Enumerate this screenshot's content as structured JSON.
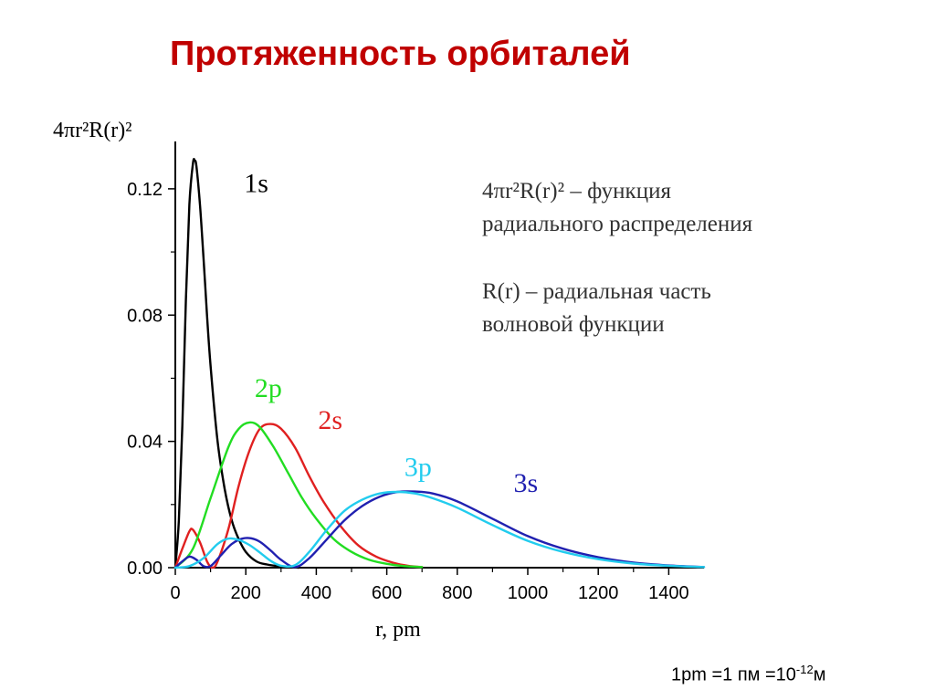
{
  "slide": {
    "title": "Протяженность орбиталей"
  },
  "annotations": {
    "line1a": "4πr²R(r)² – функция",
    "line1b": "радиального распределения",
    "line2a": "R(r) – радиальная часть",
    "line2b": "волновой функции"
  },
  "footnote": {
    "prefix": "1pm =1 пм =10",
    "exponent": "-12",
    "suffix": "м"
  },
  "chart_data": {
    "type": "line",
    "ylabel": "4πr²R(r)²",
    "xlabel": "r, pm",
    "xlim": [
      0,
      1500
    ],
    "ylim": [
      0,
      0.135
    ],
    "xticks": [
      0,
      200,
      400,
      600,
      800,
      1000,
      1200,
      1400
    ],
    "xtick_labels": [
      "0",
      "200",
      "400",
      "600",
      "800",
      "1000",
      "1200",
      "1400"
    ],
    "yticks": [
      0,
      0.04,
      0.08,
      0.12
    ],
    "ytick_labels": [
      "0.00",
      "0.04",
      "0.08",
      "0.12"
    ],
    "grid": false,
    "series": [
      {
        "name": "1s",
        "color": "#000000",
        "x": [
          0,
          10,
          20,
          30,
          40,
          50,
          55,
          60,
          70,
          80,
          90,
          100,
          120,
          140,
          160,
          180,
          200,
          230,
          260,
          300,
          350
        ],
        "y": [
          0,
          0.015,
          0.045,
          0.085,
          0.115,
          0.128,
          0.129,
          0.127,
          0.115,
          0.098,
          0.08,
          0.064,
          0.04,
          0.025,
          0.015,
          0.009,
          0.005,
          0.002,
          0.001,
          0.0004,
          0
        ]
      },
      {
        "name": "2s",
        "color": "#e02020",
        "x": [
          0,
          20,
          40,
          50,
          70,
          90,
          105,
          120,
          150,
          180,
          210,
          240,
          270,
          300,
          340,
          380,
          420,
          470,
          520,
          570,
          620,
          660,
          700
        ],
        "y": [
          0,
          0.006,
          0.0115,
          0.012,
          0.008,
          0.002,
          0,
          0.002,
          0.012,
          0.026,
          0.037,
          0.044,
          0.0455,
          0.044,
          0.038,
          0.029,
          0.021,
          0.013,
          0.007,
          0.0035,
          0.0015,
          0.0006,
          0.0002
        ]
      },
      {
        "name": "2p",
        "color": "#22dd22",
        "x": [
          0,
          50,
          100,
          150,
          180,
          210,
          240,
          280,
          320,
          360,
          400,
          450,
          500,
          550,
          600,
          650,
          700
        ],
        "y": [
          0,
          0.006,
          0.022,
          0.038,
          0.044,
          0.046,
          0.0445,
          0.038,
          0.03,
          0.022,
          0.0155,
          0.009,
          0.005,
          0.0025,
          0.0012,
          0.0005,
          0.0002
        ]
      },
      {
        "name": "3s",
        "color": "#2020b0",
        "x": [
          0,
          20,
          40,
          60,
          80,
          100,
          130,
          160,
          190,
          215,
          240,
          270,
          300,
          340,
          380,
          430,
          480,
          530,
          580,
          630,
          680,
          730,
          800,
          900,
          1000,
          1100,
          1200,
          1300,
          1400,
          1500
        ],
        "y": [
          0,
          0.002,
          0.0035,
          0.0025,
          0.0005,
          0.0005,
          0.004,
          0.0075,
          0.0092,
          0.0093,
          0.0082,
          0.0055,
          0.0025,
          0.0002,
          0.003,
          0.009,
          0.015,
          0.0195,
          0.0225,
          0.024,
          0.0241,
          0.0235,
          0.021,
          0.0155,
          0.01,
          0.006,
          0.0033,
          0.0016,
          0.0007,
          0.0002
        ]
      },
      {
        "name": "3p",
        "color": "#22ccee",
        "x": [
          0,
          40,
          80,
          120,
          150,
          180,
          210,
          240,
          270,
          300,
          340,
          380,
          430,
          480,
          530,
          580,
          630,
          680,
          730,
          800,
          900,
          1000,
          1100,
          1200,
          1300,
          1400,
          1500
        ],
        "y": [
          0,
          0.0005,
          0.003,
          0.0075,
          0.0092,
          0.0088,
          0.0072,
          0.0048,
          0.0022,
          0.0006,
          0.0008,
          0.005,
          0.012,
          0.018,
          0.0215,
          0.0235,
          0.024,
          0.0235,
          0.022,
          0.019,
          0.0135,
          0.0085,
          0.005,
          0.0027,
          0.0013,
          0.0006,
          0.0002
        ]
      }
    ],
    "curve_labels": [
      {
        "text": "1s",
        "series": "1s",
        "x": 195,
        "y": 0.119
      },
      {
        "text": "2p",
        "series": "2p",
        "x": 225,
        "y": 0.054
      },
      {
        "text": "2s",
        "series": "2s",
        "x": 405,
        "y": 0.044
      },
      {
        "text": "3p",
        "series": "3p",
        "x": 650,
        "y": 0.029
      },
      {
        "text": "3s",
        "series": "3s",
        "x": 960,
        "y": 0.024
      }
    ]
  }
}
